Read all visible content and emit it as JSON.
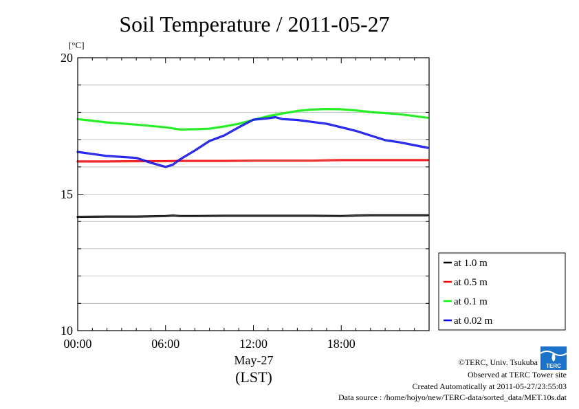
{
  "chart_data": {
    "type": "line",
    "title": "Soil Temperature / 2011-05-27",
    "ylabel": "[°C]",
    "xlabel_date": "May-27",
    "xlabel_unit": "(LST)",
    "ylim": [
      10,
      20
    ],
    "xlim": [
      0,
      24
    ],
    "y_ticks": [
      "10",
      "15",
      "20"
    ],
    "x_ticks": [
      "00:00",
      "06:00",
      "12:00",
      "18:00"
    ],
    "x_tick_hours": [
      0,
      6,
      12,
      18
    ],
    "grid": "horizontal, every 1 °C",
    "legend_position": "right",
    "series": [
      {
        "name": "at 1.0 m",
        "color": "#000000",
        "x": [
          0,
          2,
          4,
          6,
          6.5,
          7,
          8,
          10,
          12,
          14,
          16,
          18,
          19,
          20,
          22,
          23.9
        ],
        "y": [
          14.17,
          14.18,
          14.18,
          14.2,
          14.22,
          14.2,
          14.2,
          14.21,
          14.21,
          14.21,
          14.21,
          14.2,
          14.22,
          14.23,
          14.23,
          14.23
        ]
      },
      {
        "name": "at 0.5 m",
        "color": "#ff0000",
        "x": [
          0,
          2,
          4,
          6,
          7,
          8,
          10,
          12,
          14,
          16,
          18,
          20,
          22,
          23.9
        ],
        "y": [
          16.2,
          16.2,
          16.21,
          16.21,
          16.22,
          16.22,
          16.22,
          16.23,
          16.23,
          16.23,
          16.25,
          16.25,
          16.25,
          16.25
        ]
      },
      {
        "name": "at 0.1 m",
        "color": "#00ff00",
        "x": [
          0,
          2,
          4,
          6,
          7,
          8,
          9,
          10,
          11,
          12,
          13,
          14,
          15,
          16,
          17,
          18,
          19,
          20,
          22,
          23.9
        ],
        "y": [
          17.75,
          17.63,
          17.55,
          17.45,
          17.37,
          17.38,
          17.4,
          17.48,
          17.58,
          17.72,
          17.86,
          17.96,
          18.05,
          18.1,
          18.12,
          18.11,
          18.07,
          18.01,
          17.93,
          17.8
        ]
      },
      {
        "name": "at 0.02 m",
        "color": "#0000ff",
        "x": [
          0,
          2,
          4,
          5,
          6,
          6.5,
          7,
          8,
          9,
          10,
          11,
          12,
          13,
          13.5,
          14,
          15,
          16,
          17,
          18,
          19,
          20,
          21,
          22,
          23.9
        ],
        "y": [
          16.55,
          16.4,
          16.33,
          16.15,
          16.0,
          16.08,
          16.28,
          16.6,
          16.95,
          17.15,
          17.45,
          17.73,
          17.78,
          17.82,
          17.75,
          17.72,
          17.65,
          17.58,
          17.45,
          17.32,
          17.15,
          16.98,
          16.9,
          16.7
        ]
      }
    ]
  },
  "credits": {
    "copyright": "©TERC, Univ. Tsukuba",
    "site": "Observed at TERC Tower site",
    "created": "Created Automatically at 2011-05-27/23:55:03",
    "source": "Data source : /home/hojyo/new/TERC-data/sorted_data/MET.10s.dat",
    "logo_text": "TERC"
  }
}
